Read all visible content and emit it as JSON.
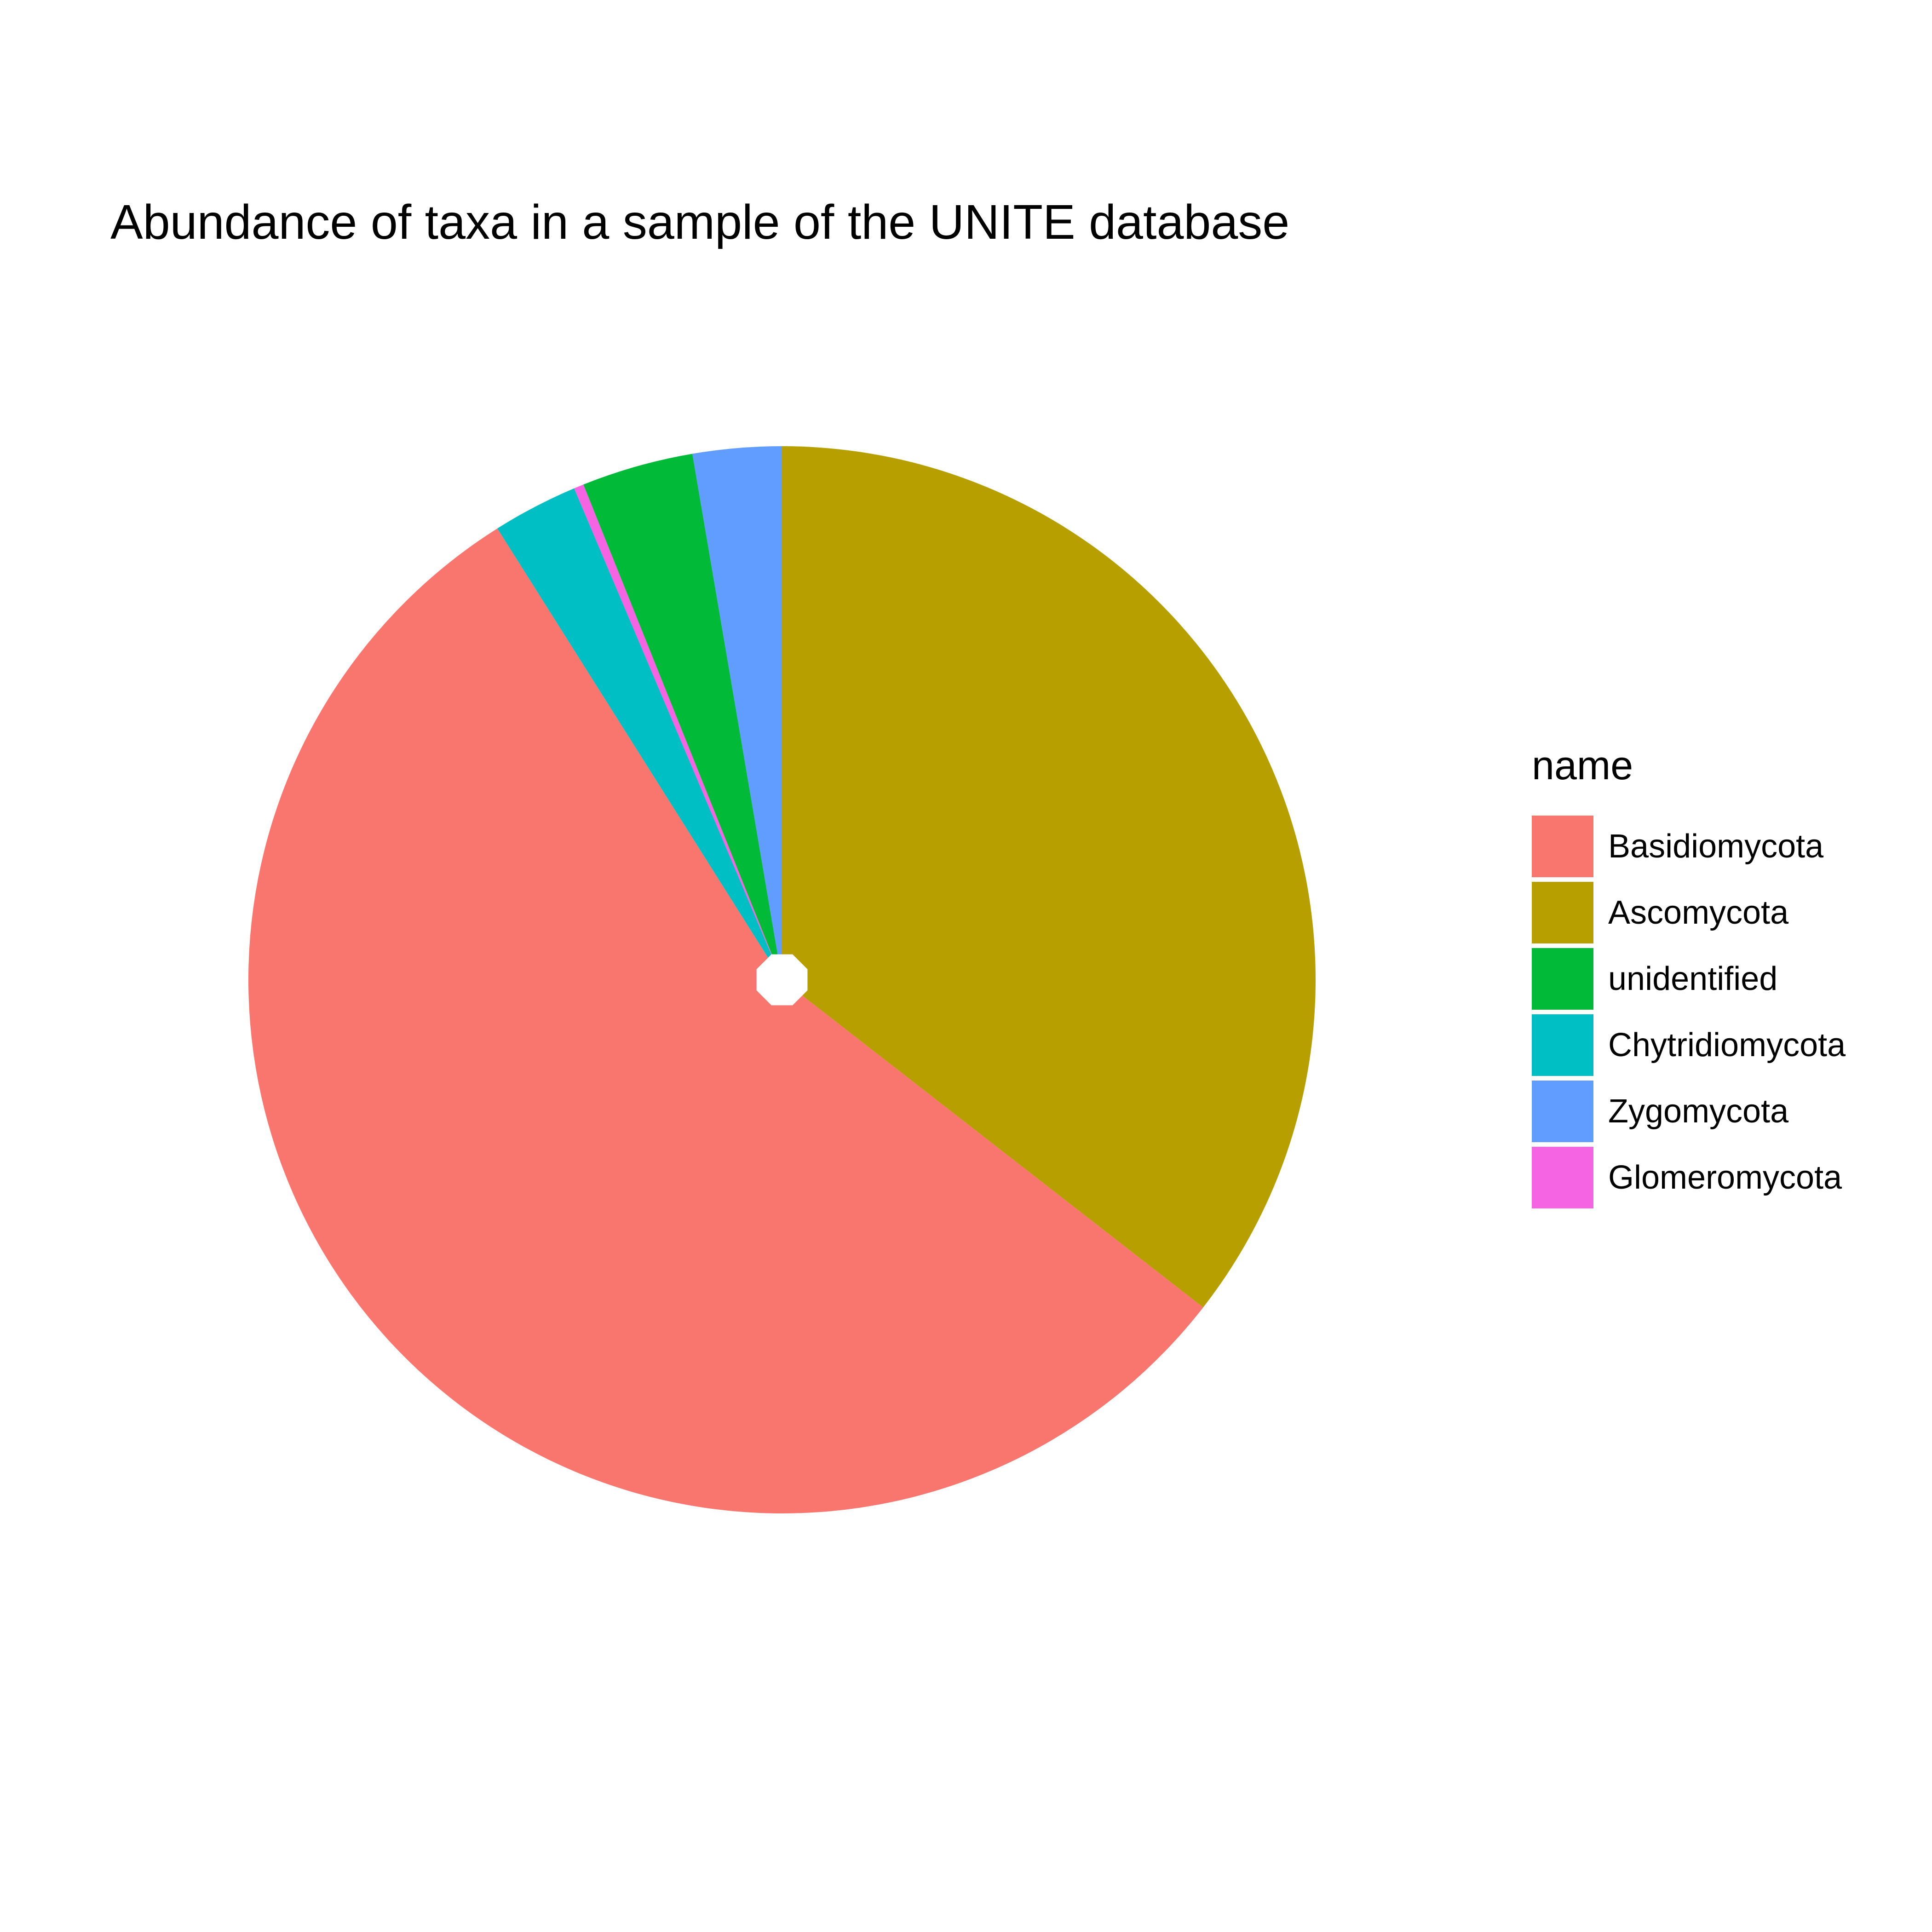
{
  "chart_data": {
    "type": "pie",
    "title": "Abundance of taxa in a sample of the UNITE database",
    "legend_title": "name",
    "legend_position": "right",
    "start": "12 o'clock",
    "direction": "clockwise",
    "slice_order": [
      "Ascomycota",
      "Basidiomycota",
      "Chytridiomycota",
      "Glomeromycota",
      "unidentified",
      "Zygomycota"
    ],
    "slices": [
      {
        "name": "Basidiomycota",
        "value": 55.8,
        "color": "#F8766D"
      },
      {
        "name": "Ascomycota",
        "value": 35.7,
        "color": "#B79F00"
      },
      {
        "name": "unidentified",
        "value": 3.4,
        "color": "#00BA38"
      },
      {
        "name": "Chytridiomycota",
        "value": 2.6,
        "color": "#00BFC4"
      },
      {
        "name": "Zygomycota",
        "value": 2.7,
        "color": "#619CFF"
      },
      {
        "name": "Glomeromycota",
        "value": 0.3,
        "color": "#F564E3"
      }
    ]
  }
}
